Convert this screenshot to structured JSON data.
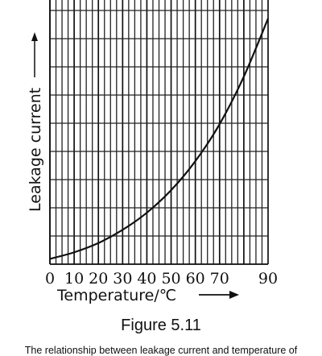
{
  "chart_data": {
    "type": "line",
    "xlabel": "Temperature/℃",
    "ylabel": "Leakage current",
    "x_ticks": [
      "0",
      "10",
      "20",
      "30",
      "40",
      "50",
      "60",
      "70",
      "90"
    ],
    "xlim": [
      0,
      90
    ],
    "ylim": [
      0,
      10
    ],
    "grid": true,
    "series": [
      {
        "x": [
          0,
          10,
          20,
          30,
          40,
          50,
          60,
          70,
          80,
          90
        ],
        "y": [
          0.2,
          0.45,
          0.8,
          1.3,
          1.95,
          2.8,
          3.9,
          5.3,
          7.1,
          9.3
        ]
      }
    ]
  },
  "figure_label": "Figure 5.11",
  "caption": "The relationship between leakage current and temperature of"
}
